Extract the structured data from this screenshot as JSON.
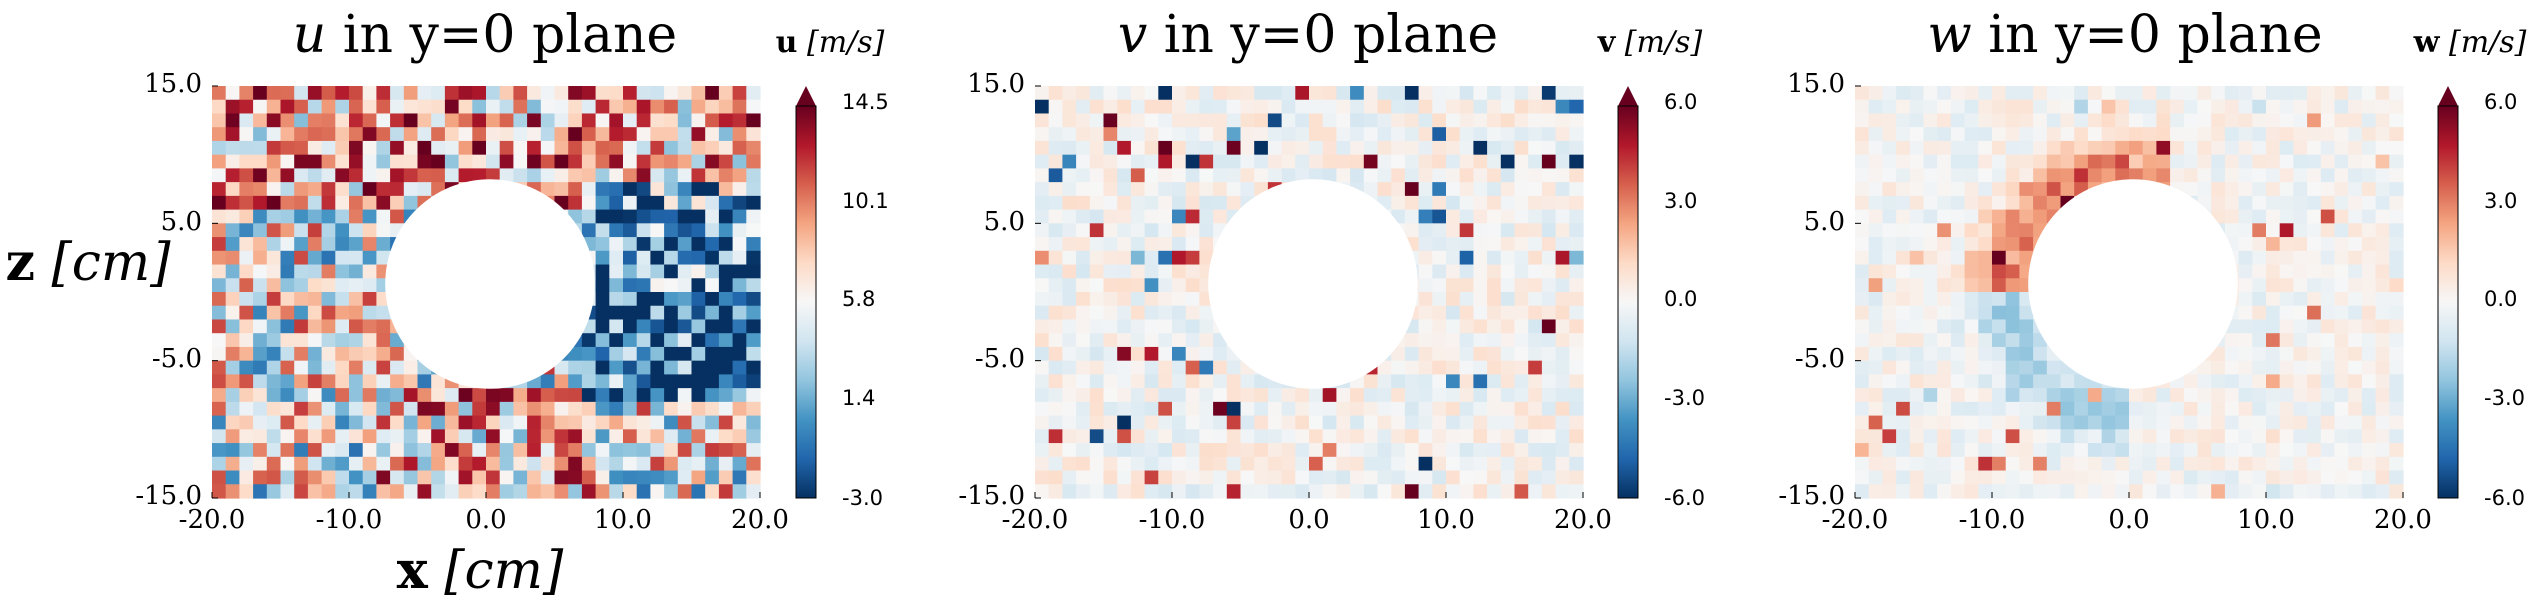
{
  "chart_data": [
    {
      "type": "heatmap",
      "title_symbol": "u",
      "title_rest": " in y=0 plane",
      "xlabel_bold": "x",
      "xlabel_unit": " [cm]",
      "ylabel_bold": "z",
      "ylabel_unit": " [cm]",
      "xlim": [
        -20.0,
        20.0
      ],
      "ylim": [
        -15.0,
        15.0
      ],
      "xticks": [
        "-20.0",
        "-10.0",
        "0.0",
        "10.0",
        "20.0"
      ],
      "yticks": [
        "15.0",
        "5.0",
        "-5.0",
        "-15.0"
      ],
      "ytick_values": [
        15,
        5,
        -5,
        -15
      ],
      "xtick_values": [
        -20,
        -10,
        0,
        10,
        20
      ],
      "grid": "30 x 40 cells",
      "masked_region": {
        "shape": "circle",
        "center": [
          0,
          0
        ],
        "radius_cm": 7.5
      },
      "colormap": "RdBu_r",
      "colorbar": {
        "label_symbol": "u",
        "label_unit": " [m/s]",
        "range": [
          -3.0,
          14.5
        ],
        "ticks": [
          "14.5",
          "10.1",
          "5.8",
          "1.4",
          "-3.0"
        ],
        "tick_values": [
          14.5,
          10.1,
          5.8,
          1.4,
          -3.0
        ],
        "extend": "max"
      }
    },
    {
      "type": "heatmap",
      "title_symbol": "v",
      "title_rest": " in y=0 plane",
      "xlim": [
        -20.0,
        20.0
      ],
      "ylim": [
        -15.0,
        15.0
      ],
      "xticks": [
        "-20.0",
        "-10.0",
        "0.0",
        "10.0",
        "20.0"
      ],
      "yticks": [
        "15.0",
        "5.0",
        "-5.0",
        "-15.0"
      ],
      "ytick_values": [
        15,
        5,
        -5,
        -15
      ],
      "xtick_values": [
        -20,
        -10,
        0,
        10,
        20
      ],
      "grid": "30 x 40 cells",
      "masked_region": {
        "shape": "circle",
        "center": [
          0,
          0
        ],
        "radius_cm": 7.5
      },
      "colormap": "RdBu_r",
      "colorbar": {
        "label_symbol": "v",
        "label_unit": " [m/s]",
        "range": [
          -6.0,
          6.0
        ],
        "ticks": [
          "6.0",
          "3.0",
          "0.0",
          "-3.0",
          "-6.0"
        ],
        "tick_values": [
          6.0,
          3.0,
          0.0,
          -3.0,
          -6.0
        ],
        "extend": "max"
      }
    },
    {
      "type": "heatmap",
      "title_symbol": "w",
      "title_rest": " in y=0 plane",
      "xlim": [
        -20.0,
        20.0
      ],
      "ylim": [
        -15.0,
        15.0
      ],
      "xticks": [
        "-20.0",
        "-10.0",
        "0.0",
        "10.0",
        "20.0"
      ],
      "yticks": [
        "15.0",
        "5.0",
        "-5.0",
        "-15.0"
      ],
      "ytick_values": [
        15,
        5,
        -5,
        -15
      ],
      "xtick_values": [
        -20,
        -10,
        0,
        10,
        20
      ],
      "grid": "30 x 40 cells",
      "masked_region": {
        "shape": "circle",
        "center": [
          0,
          0
        ],
        "radius_cm": 7.5
      },
      "colormap": "RdBu_r",
      "colorbar": {
        "label_symbol": "w",
        "label_unit": " [m/s]",
        "range": [
          -6.0,
          6.0
        ],
        "ticks": [
          "6.0",
          "3.0",
          "0.0",
          "-3.0",
          "-6.0"
        ],
        "tick_values": [
          6.0,
          3.0,
          0.0,
          -3.0,
          -6.0
        ],
        "extend": "max"
      }
    }
  ]
}
